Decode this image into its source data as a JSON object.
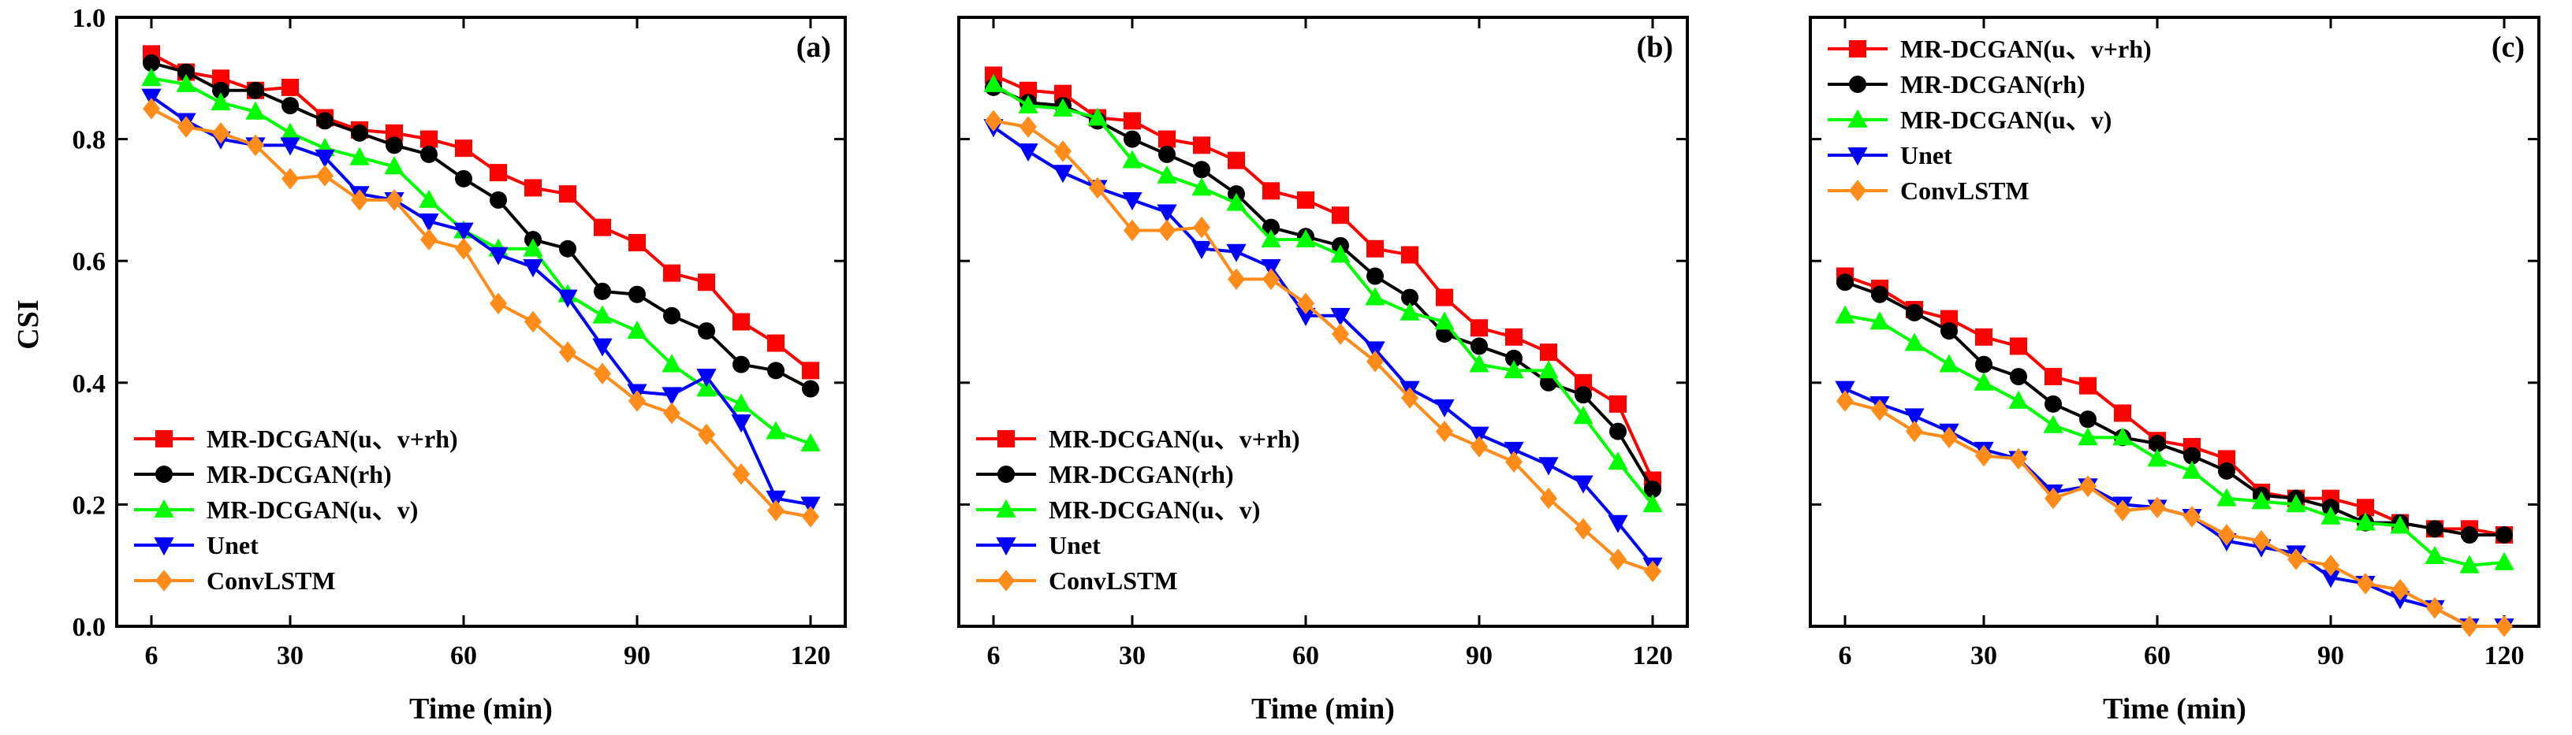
{
  "chart_data": {
    "type": "line",
    "ylabel": "CSI",
    "ylim": [
      0,
      1.0
    ],
    "yticks": [
      "0.0",
      "0.2",
      "0.4",
      "0.6",
      "0.8",
      "1.0"
    ],
    "xlim": [
      0,
      126
    ],
    "xticks": [
      "6",
      "30",
      "60",
      "90",
      "120"
    ],
    "x": [
      6,
      12,
      18,
      24,
      30,
      36,
      42,
      48,
      54,
      60,
      66,
      72,
      78,
      84,
      90,
      96,
      102,
      108,
      114,
      120
    ],
    "series_styles": [
      {
        "name": "MR-DCGAN(u、v+rh)",
        "color": "#ff0000",
        "marker": "square"
      },
      {
        "name": "MR-DCGAN(rh)",
        "color": "#000000",
        "marker": "circle"
      },
      {
        "name": "MR-DCGAN(u、v)",
        "color": "#00ff00",
        "marker": "triangle-up"
      },
      {
        "name": "Unet",
        "color": "#0000ff",
        "marker": "triangle-down"
      },
      {
        "name": "ConvLSTM",
        "color": "#ff8c1a",
        "marker": "diamond"
      }
    ],
    "panels": [
      {
        "label": "(a)",
        "xlabel": "Time (min)",
        "legend": "bottom-left",
        "series": [
          {
            "name": "MR-DCGAN(u、v+rh)",
            "values": [
              0.94,
              0.91,
              0.9,
              0.88,
              0.885,
              0.835,
              0.815,
              0.81,
              0.8,
              0.785,
              0.745,
              0.72,
              0.71,
              0.655,
              0.63,
              0.58,
              0.565,
              0.5,
              0.465,
              0.42
            ]
          },
          {
            "name": "MR-DCGAN(rh)",
            "values": [
              0.925,
              0.91,
              0.88,
              0.88,
              0.855,
              0.83,
              0.81,
              0.79,
              0.775,
              0.735,
              0.7,
              0.635,
              0.62,
              0.55,
              0.545,
              0.51,
              0.485,
              0.43,
              0.42,
              0.39
            ]
          },
          {
            "name": "MR-DCGAN(u、v)",
            "values": [
              0.9,
              0.89,
              0.86,
              0.845,
              0.81,
              0.785,
              0.77,
              0.755,
              0.7,
              0.65,
              0.62,
              0.62,
              0.545,
              0.51,
              0.485,
              0.43,
              0.39,
              0.365,
              0.32,
              0.3
            ]
          },
          {
            "name": "Unet",
            "values": [
              0.87,
              0.83,
              0.8,
              0.79,
              0.79,
              0.77,
              0.71,
              0.7,
              0.665,
              0.65,
              0.61,
              0.59,
              0.54,
              0.46,
              0.385,
              0.38,
              0.41,
              0.335,
              0.21,
              0.2
            ]
          },
          {
            "name": "ConvLSTM",
            "values": [
              0.85,
              0.82,
              0.81,
              0.79,
              0.735,
              0.74,
              0.7,
              0.7,
              0.635,
              0.62,
              0.53,
              0.5,
              0.45,
              0.415,
              0.37,
              0.35,
              0.315,
              0.25,
              0.19,
              0.18
            ]
          }
        ]
      },
      {
        "label": "(b)",
        "xlabel": "Time (min)",
        "legend": "bottom-left",
        "series": [
          {
            "name": "MR-DCGAN(u、v+rh)",
            "values": [
              0.905,
              0.88,
              0.875,
              0.835,
              0.83,
              0.8,
              0.79,
              0.765,
              0.715,
              0.7,
              0.675,
              0.62,
              0.61,
              0.54,
              0.49,
              0.475,
              0.45,
              0.4,
              0.365,
              0.24
            ]
          },
          {
            "name": "MR-DCGAN(rh)",
            "values": [
              0.885,
              0.86,
              0.855,
              0.83,
              0.8,
              0.775,
              0.75,
              0.71,
              0.655,
              0.64,
              0.625,
              0.575,
              0.54,
              0.48,
              0.46,
              0.44,
              0.4,
              0.38,
              0.32,
              0.225
            ]
          },
          {
            "name": "MR-DCGAN(u、v)",
            "values": [
              0.89,
              0.855,
              0.85,
              0.835,
              0.765,
              0.74,
              0.72,
              0.695,
              0.635,
              0.635,
              0.61,
              0.54,
              0.515,
              0.5,
              0.43,
              0.42,
              0.42,
              0.345,
              0.27,
              0.2
            ]
          },
          {
            "name": "Unet",
            "values": [
              0.82,
              0.78,
              0.745,
              0.72,
              0.7,
              0.68,
              0.62,
              0.615,
              0.59,
              0.51,
              0.51,
              0.455,
              0.39,
              0.36,
              0.315,
              0.29,
              0.265,
              0.235,
              0.17,
              0.1
            ]
          },
          {
            "name": "ConvLSTM",
            "values": [
              0.83,
              0.82,
              0.78,
              0.72,
              0.65,
              0.65,
              0.655,
              0.57,
              0.57,
              0.53,
              0.48,
              0.435,
              0.375,
              0.32,
              0.295,
              0.27,
              0.21,
              0.16,
              0.11,
              0.09
            ]
          }
        ]
      },
      {
        "label": "(c)",
        "xlabel": "Time (min)",
        "legend": "top-left",
        "series": [
          {
            "name": "MR-DCGAN(u、v+rh)",
            "values": [
              0.575,
              0.555,
              0.52,
              0.505,
              0.475,
              0.46,
              0.41,
              0.395,
              0.35,
              0.305,
              0.295,
              0.275,
              0.22,
              0.21,
              0.21,
              0.195,
              0.17,
              0.16,
              0.16,
              0.15
            ]
          },
          {
            "name": "MR-DCGAN(rh)",
            "values": [
              0.565,
              0.545,
              0.515,
              0.485,
              0.43,
              0.41,
              0.365,
              0.34,
              0.31,
              0.3,
              0.28,
              0.255,
              0.215,
              0.21,
              0.195,
              0.17,
              0.17,
              0.16,
              0.15,
              0.15
            ]
          },
          {
            "name": "MR-DCGAN(u、v)",
            "values": [
              0.51,
              0.5,
              0.465,
              0.43,
              0.4,
              0.37,
              0.33,
              0.31,
              0.31,
              0.275,
              0.255,
              0.21,
              0.205,
              0.2,
              0.18,
              0.17,
              0.165,
              0.115,
              0.1,
              0.105
            ]
          },
          {
            "name": "Unet",
            "values": [
              0.39,
              0.365,
              0.345,
              0.32,
              0.29,
              0.275,
              0.22,
              0.23,
              0.2,
              0.195,
              0.18,
              0.14,
              0.13,
              0.12,
              0.08,
              0.07,
              0.045,
              0.03,
              0.0,
              0.0
            ]
          },
          {
            "name": "ConvLSTM",
            "values": [
              0.37,
              0.355,
              0.32,
              0.31,
              0.28,
              0.275,
              0.21,
              0.23,
              0.19,
              0.195,
              0.18,
              0.15,
              0.14,
              0.11,
              0.1,
              0.07,
              0.06,
              0.03,
              0.0,
              0.0
            ]
          }
        ]
      }
    ]
  }
}
